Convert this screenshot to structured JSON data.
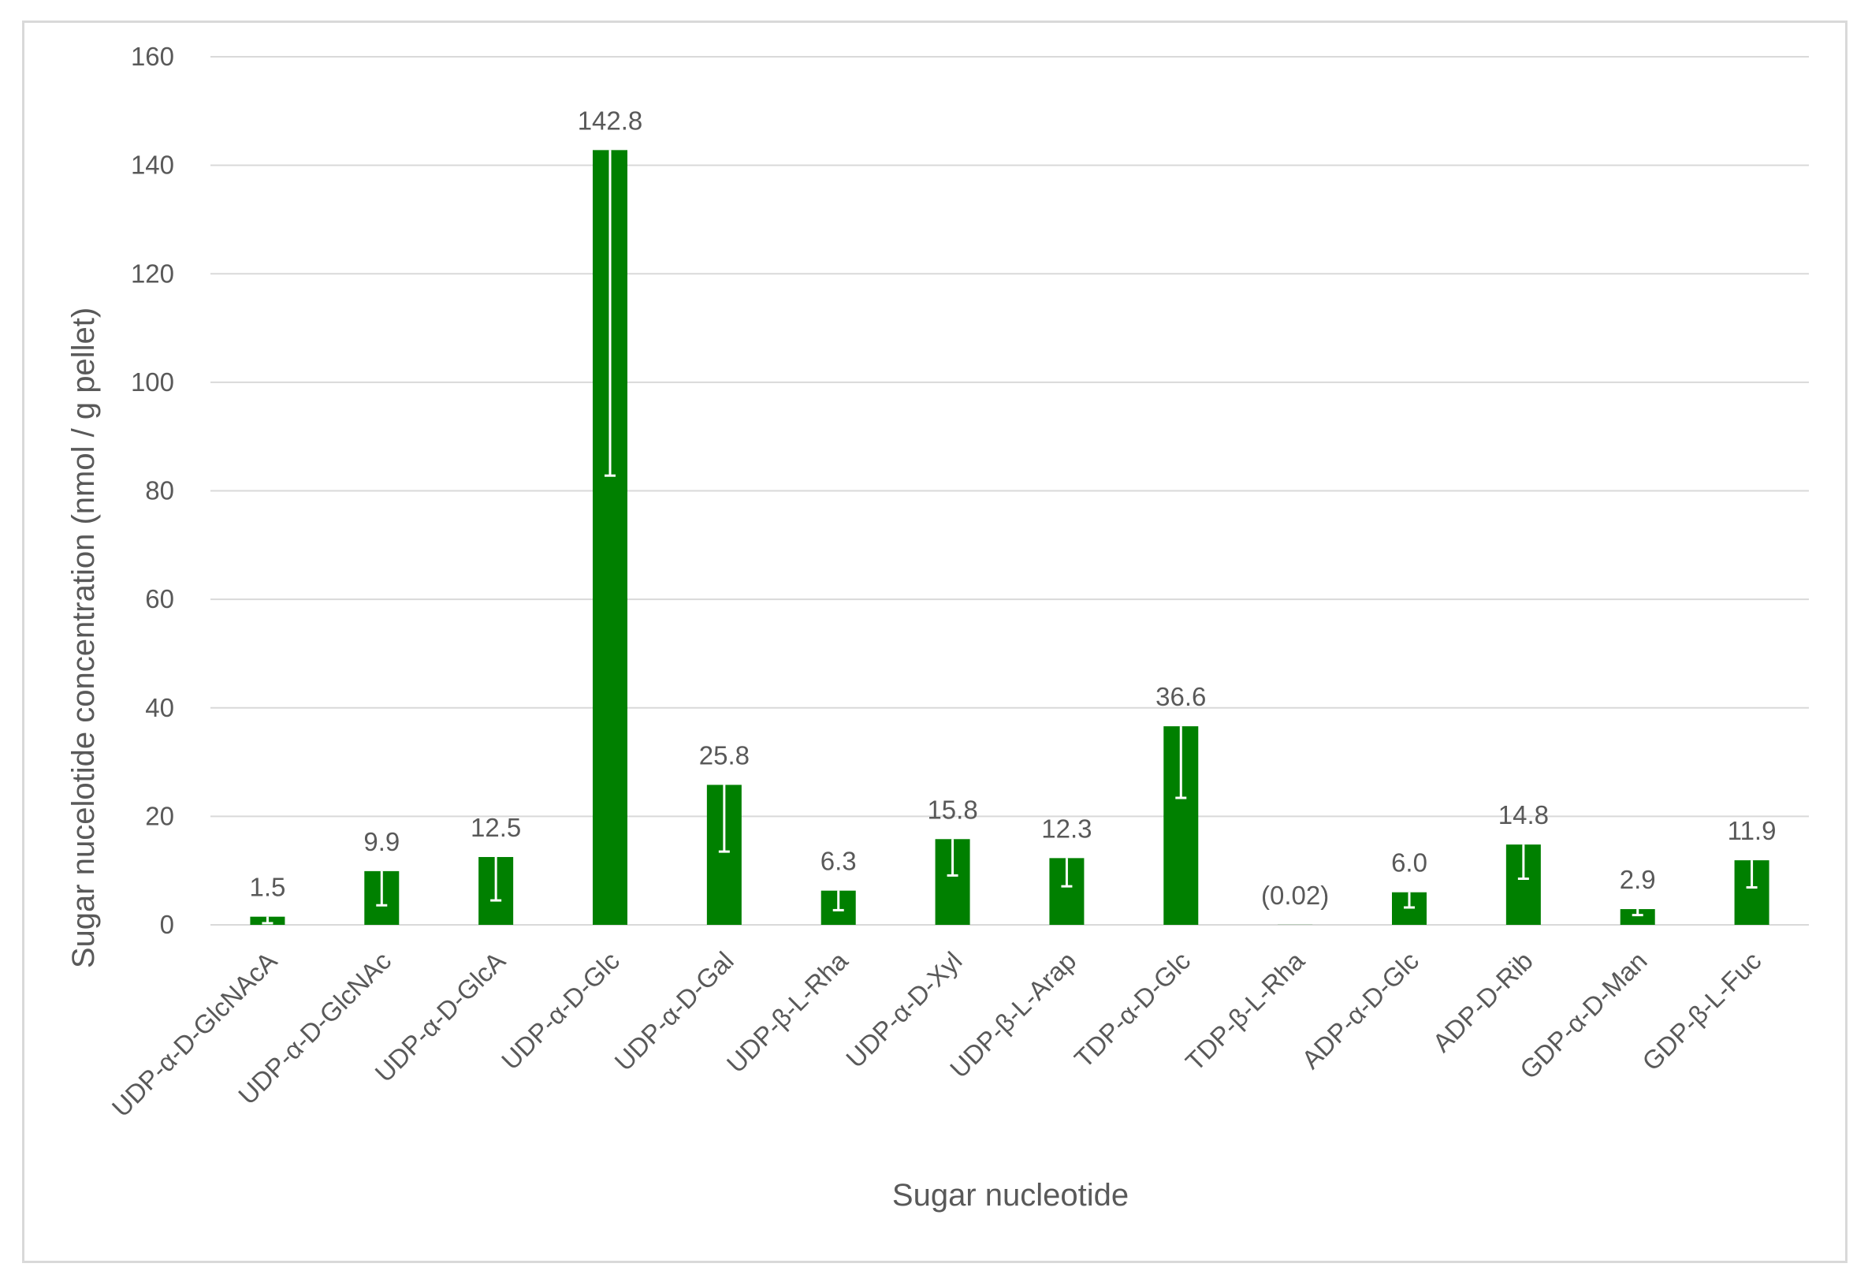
{
  "chart_data": {
    "type": "bar",
    "title": "",
    "xlabel": "Sugar nucleotide",
    "ylabel": "Sugar nucelotide concentration (nmol / g pellet)",
    "ylim": [
      0,
      160
    ],
    "yticks": [
      "0",
      "20",
      "40",
      "60",
      "80",
      "100",
      "120",
      "140",
      "160"
    ],
    "grid": "horizontal",
    "legend": "none",
    "categories": [
      "UDP-α-D-GlcNAcA",
      "UDP-α-D-GlcNAc",
      "UDP-α-D-GlcA",
      "UDP-α-D-Glc",
      "UDP-α-D-Gal",
      "UDP-β-L-Rha",
      "UDP-α-D-Xyl",
      "UDP-β-L-Arap",
      "TDP-α-D-Glc",
      "TDP-β-L-Rha",
      "ADP-α-D-Glc",
      "ADP-D-Rib",
      "GDP-α-D-Man",
      "GDP-β-L-Fuc"
    ],
    "values": [
      1.5,
      9.9,
      12.5,
      142.8,
      25.8,
      6.3,
      15.8,
      12.3,
      36.6,
      0.02,
      6.0,
      14.8,
      2.9,
      11.9
    ],
    "data_labels": [
      "1.5",
      "9.9",
      "12.5",
      "142.8",
      "25.8",
      "6.3",
      "15.8",
      "12.3",
      "36.6",
      "(0.02)",
      "6.0",
      "14.8",
      "2.9",
      "11.9"
    ],
    "error_lower": [
      1.2,
      6.3,
      8.0,
      60.0,
      12.3,
      3.6,
      6.7,
      5.2,
      13.2,
      0,
      2.8,
      6.3,
      1.1,
      5.0
    ],
    "colors": {
      "bar": "#008000",
      "error_bar": "#ffffff",
      "grid": "#d9d9d9",
      "text": "#595959"
    }
  }
}
